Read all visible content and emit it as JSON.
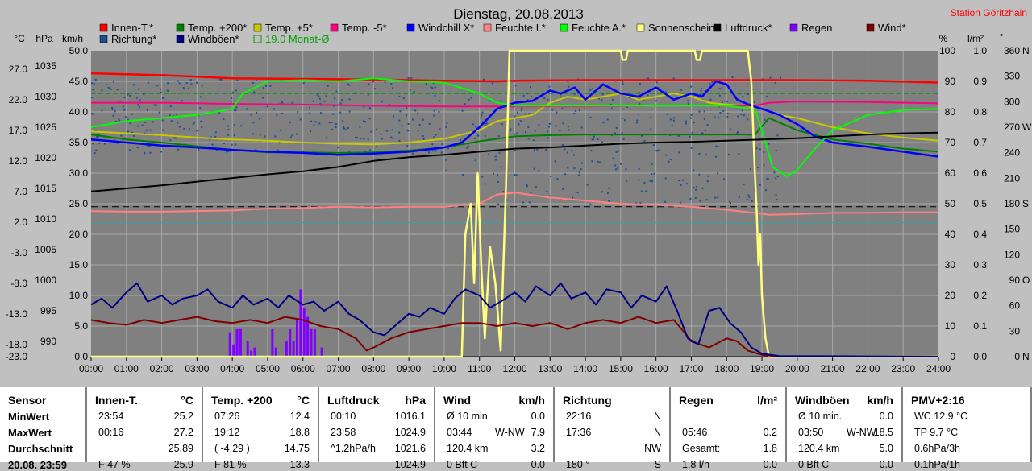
{
  "station": "Station Göritzhain",
  "chart_data": {
    "type": "line",
    "title": "Dienstag, 20.08.2013",
    "axis_units": {
      "c": "°C",
      "hpa": "hPa",
      "kmh": "km/h",
      "pct": "%",
      "rain": "l/m²",
      "deg": "°"
    },
    "x_ticks": [
      "00:00",
      "01:00",
      "02:00",
      "03:00",
      "04:00",
      "05:00",
      "06:00",
      "07:00",
      "08:00",
      "09:00",
      "10:00",
      "11:00",
      "12:00",
      "13:00",
      "14:00",
      "15:00",
      "16:00",
      "17:00",
      "18:00",
      "19:00",
      "20:00",
      "21:00",
      "22:00",
      "23:00",
      "24:00"
    ],
    "y_ticks_temp": [
      "27.0",
      "22.0",
      "17.0",
      "12.0",
      "7.0",
      "2.0",
      "-3.0",
      "-8.0",
      "-13.0",
      "-18.0",
      "-23.0"
    ],
    "y_ticks_hpa": [
      "1035",
      "1030",
      "1025",
      "1020",
      "1015",
      "1010",
      "1005",
      "1000",
      "995",
      "990"
    ],
    "y_ticks_kmh": [
      "50.0",
      "45.0",
      "40.0",
      "35.0",
      "30.0",
      "25.0",
      "20.0",
      "15.0",
      "10.0",
      "5.0",
      "0.0"
    ],
    "y_ticks_pct": [
      "100",
      "90",
      "80",
      "70",
      "60",
      "50",
      "40",
      "30",
      "20",
      "10",
      "0"
    ],
    "y_ticks_rain": [
      "1.0",
      "0.9",
      "0.8",
      "0.7",
      "0.6",
      "0.5",
      "0.4",
      "0.3",
      "0.2",
      "0.1",
      "0.0"
    ],
    "y_ticks_deg": [
      "360",
      "330",
      "300",
      "270",
      "240",
      "210",
      "180",
      "150",
      "120",
      "90",
      "60",
      "30",
      "0"
    ],
    "dir_labels": [
      {
        "deg": 360,
        "t": "N"
      },
      {
        "deg": 270,
        "t": "W"
      },
      {
        "deg": 180,
        "t": "S"
      },
      {
        "deg": 90,
        "t": "O"
      },
      {
        "deg": 0,
        "t": "N"
      }
    ],
    "ylim_kmh": [
      0,
      50
    ],
    "legend": [
      {
        "name": "Innen-T.*",
        "color": "#ff0000"
      },
      {
        "name": "Temp. +200*",
        "color": "#008000"
      },
      {
        "name": "Temp. +5*",
        "color": "#c8c800"
      },
      {
        "name": "Temp. -5*",
        "color": "#ff0080"
      },
      {
        "name": "Windchill X*",
        "color": "#0000ff"
      },
      {
        "name": "Feuchte I.*",
        "color": "#ff8080"
      },
      {
        "name": "Feuchte A.*",
        "color": "#00ff00"
      },
      {
        "name": "Sonnenschein",
        "color": "#ffff80"
      },
      {
        "name": "Luftdruck*",
        "color": "#000000"
      },
      {
        "name": "Regen",
        "color": "#8000ff"
      },
      {
        "name": "Wind*",
        "color": "#800000"
      },
      {
        "name": "Richtung*",
        "color": "#1f4f8f"
      },
      {
        "name": "Windböen*",
        "color": "#000080"
      },
      {
        "name": "19.0 Monat-Ø",
        "color": "#00a000",
        "outline": true
      }
    ],
    "series": [
      {
        "name": "Innen-T.*",
        "color": "#ff0000",
        "unit": "kmh",
        "x": [
          0,
          2,
          4,
          6,
          8,
          10,
          11.5,
          12,
          14,
          16,
          18,
          20,
          22,
          24
        ],
        "y": [
          46.3,
          46.0,
          45.5,
          45.4,
          45.3,
          45.1,
          45.0,
          45.1,
          45.2,
          45.2,
          45.2,
          45.2,
          45.1,
          44.8
        ]
      },
      {
        "name": "Temp. +200*",
        "color": "#008000",
        "unit": "kmh",
        "x": [
          0,
          1,
          2,
          3,
          4,
          5,
          6,
          7,
          8,
          9,
          10,
          11,
          12,
          13,
          14,
          15,
          16,
          17,
          18,
          18.8,
          19.2,
          20,
          21,
          22,
          23,
          24
        ],
        "y": [
          36.3,
          35.5,
          35.0,
          34.4,
          33.8,
          33.4,
          33.4,
          33.3,
          33.4,
          33.7,
          34.2,
          35.2,
          36.0,
          36.2,
          36.3,
          36.3,
          36.3,
          36.3,
          36.3,
          36.3,
          39.0,
          37.0,
          35.5,
          34.8,
          34.0,
          33.5
        ]
      },
      {
        "name": "Temp. +5*",
        "color": "#c8c800",
        "unit": "kmh",
        "x": [
          0,
          1,
          2,
          3,
          4,
          5,
          6,
          7,
          8,
          9,
          10,
          11,
          11.5,
          12,
          12.5,
          13,
          13.5,
          14,
          14.5,
          15,
          15.5,
          16,
          16.5,
          17,
          17.5,
          18,
          18.5,
          19,
          19.5,
          20,
          21,
          22,
          23,
          24
        ],
        "y": [
          36.8,
          36.5,
          36.2,
          35.8,
          35.5,
          35.3,
          35.0,
          34.8,
          34.7,
          35.0,
          35.6,
          37.0,
          38.5,
          39.0,
          39.5,
          41.5,
          42.5,
          42.0,
          42.5,
          43.0,
          42.0,
          42.5,
          43.0,
          42.5,
          41.5,
          41.2,
          41.0,
          40.5,
          39.5,
          39.0,
          37.5,
          36.5,
          35.8,
          35.3
        ]
      },
      {
        "name": "Temp. -5*",
        "color": "#ff0080",
        "unit": "kmh",
        "x": [
          0,
          2,
          4,
          6,
          8,
          10,
          12,
          14,
          16,
          18,
          18.8,
          19.2,
          20,
          22,
          24
        ],
        "y": [
          41.5,
          41.5,
          41.3,
          41.2,
          41.0,
          40.9,
          40.9,
          40.9,
          41.0,
          41.0,
          41.0,
          41.5,
          41.7,
          41.6,
          41.4
        ]
      },
      {
        "name": "Windchill X*",
        "color": "#0000ff",
        "unit": "kmh",
        "x": [
          0,
          1,
          2,
          3,
          4,
          5,
          6,
          7,
          8,
          9,
          10,
          10.5,
          11,
          11.5,
          12,
          12.5,
          13,
          13.3,
          13.7,
          14,
          14.5,
          15,
          15.5,
          16,
          16.5,
          17,
          17.3,
          17.7,
          18,
          18.3,
          18.7,
          19,
          19.5,
          20,
          20.5,
          21,
          22,
          23,
          24
        ],
        "y": [
          35.5,
          35.0,
          34.5,
          34.2,
          33.8,
          33.5,
          33.3,
          33.0,
          33.2,
          33.5,
          34.2,
          35.0,
          37.5,
          40.5,
          41.5,
          41.8,
          43.5,
          43.0,
          44.0,
          42.0,
          44.5,
          43.0,
          42.5,
          44.0,
          42.0,
          43.0,
          42.5,
          45.0,
          44.5,
          42.0,
          41.0,
          40.5,
          39.5,
          38.0,
          36.0,
          35.0,
          34.3,
          33.5,
          32.7
        ]
      },
      {
        "name": "Feuchte I.*",
        "color": "#ff8080",
        "unit": "kmh",
        "x": [
          0,
          1,
          2,
          3,
          4,
          5,
          6,
          7,
          8,
          9,
          10,
          11,
          11.5,
          12,
          13,
          14,
          15,
          16,
          17,
          18,
          18.8,
          19.2,
          20,
          21,
          22,
          23,
          24
        ],
        "y": [
          23.8,
          23.7,
          23.7,
          23.8,
          23.9,
          24.2,
          24.3,
          24.5,
          24.4,
          24.5,
          24.5,
          25.0,
          26.5,
          26.8,
          26.0,
          25.5,
          25.0,
          24.8,
          24.5,
          24.0,
          23.5,
          23.2,
          23.3,
          23.5,
          23.5,
          23.6,
          23.6
        ]
      },
      {
        "name": "Feuchte A.*",
        "color": "#00ff00",
        "unit": "kmh",
        "x": [
          0,
          1,
          2,
          3,
          4,
          4.3,
          5,
          6,
          7,
          8,
          9,
          10,
          11,
          11.5,
          12,
          13,
          14,
          15,
          16,
          17,
          18,
          18.8,
          19,
          19.3,
          19.7,
          20,
          20.5,
          21,
          22,
          23,
          24
        ],
        "y": [
          37.5,
          38.5,
          39.0,
          39.5,
          40.5,
          43.0,
          45.0,
          45.2,
          45.0,
          45.5,
          45.0,
          44.8,
          43.0,
          41.5,
          41.0,
          41.0,
          41.0,
          41.0,
          41.0,
          41.0,
          41.0,
          40.5,
          37.0,
          31.0,
          29.5,
          30.5,
          34.0,
          37.0,
          39.5,
          40.3,
          40.5
        ]
      },
      {
        "name": "Sonnenschein",
        "color": "#ffff80",
        "unit": "kmh",
        "x": [
          0,
          10.5,
          10.6,
          10.75,
          10.85,
          10.95,
          11.05,
          11.15,
          11.3,
          11.45,
          11.6,
          11.75,
          11.85,
          15.0,
          15.05,
          15.15,
          15.2,
          17.1,
          17.15,
          17.25,
          17.3,
          18.6,
          18.7,
          18.8,
          18.85,
          18.9,
          18.95,
          19.0,
          19.1,
          19.2,
          24
        ],
        "y": [
          0,
          0,
          20.0,
          25.0,
          12.0,
          30.0,
          15.0,
          3.0,
          18.0,
          12.0,
          1.0,
          28.0,
          50.0,
          50.0,
          48.5,
          48.5,
          50.0,
          50.0,
          48.5,
          48.5,
          50.0,
          50.0,
          45.0,
          30.0,
          24.0,
          15.0,
          20.0,
          10.0,
          3.0,
          0,
          0
        ]
      },
      {
        "name": "Luftdruck*",
        "color": "#000000",
        "unit": "kmh",
        "x": [
          0,
          1,
          2,
          3,
          4,
          5,
          6,
          7,
          8,
          9,
          10,
          11,
          12,
          13,
          14,
          15,
          16,
          17,
          18,
          19,
          20,
          21,
          22,
          23,
          24
        ],
        "y": [
          27.0,
          27.5,
          28.0,
          28.6,
          29.2,
          29.8,
          30.3,
          31.0,
          32.0,
          32.6,
          33.0,
          33.5,
          34.0,
          34.2,
          34.5,
          34.8,
          35.0,
          35.1,
          35.3,
          35.5,
          35.7,
          36.0,
          36.3,
          36.5,
          36.6
        ]
      },
      {
        "name": "Wind*",
        "color": "#800000",
        "unit": "kmh",
        "x": [
          0,
          0.5,
          1,
          1.5,
          2,
          2.5,
          3,
          3.5,
          4,
          4.5,
          5,
          5.5,
          6,
          6.5,
          7,
          7.5,
          7.8,
          8,
          8.5,
          9,
          9.5,
          10,
          10.5,
          11,
          11.5,
          12,
          12.5,
          13,
          13.5,
          14,
          14.5,
          15,
          15.5,
          16,
          16.5,
          16.8,
          17,
          17.5,
          18,
          18.3,
          18.6,
          19,
          19.5,
          24
        ],
        "y": [
          6.0,
          5.5,
          5.2,
          6.0,
          5.5,
          6.0,
          6.5,
          5.8,
          5.5,
          6.0,
          5.5,
          6.5,
          6.0,
          5.0,
          4.5,
          3.0,
          1.0,
          1.5,
          3.0,
          4.0,
          4.5,
          5.0,
          5.5,
          5.5,
          5.0,
          5.5,
          5.0,
          5.5,
          4.5,
          5.5,
          6.0,
          5.5,
          6.5,
          5.5,
          6.0,
          4.0,
          2.5,
          1.5,
          3.0,
          2.5,
          1.0,
          0.3,
          0,
          0
        ]
      },
      {
        "name": "Windböen*",
        "color": "#000080",
        "unit": "kmh",
        "x": [
          0,
          0.3,
          0.6,
          1,
          1.3,
          1.6,
          2,
          2.3,
          2.6,
          3,
          3.3,
          3.6,
          4,
          4.3,
          4.6,
          5,
          5.3,
          5.6,
          6,
          6.3,
          6.6,
          7,
          7.3,
          7.6,
          8,
          8.3,
          8.6,
          9,
          9.3,
          9.6,
          10,
          10.3,
          10.6,
          11,
          11.3,
          11.6,
          12,
          12.3,
          12.6,
          13,
          13.3,
          13.6,
          14,
          14.3,
          14.6,
          15,
          15.3,
          15.6,
          16,
          16.3,
          16.6,
          16.9,
          17.2,
          17.5,
          17.8,
          18.1,
          18.4,
          18.7,
          19,
          19.5,
          24
        ],
        "y": [
          8.5,
          9.5,
          8.0,
          10.5,
          12.0,
          9.0,
          10.0,
          8.5,
          9.5,
          10.0,
          11.0,
          9.0,
          8.0,
          10.0,
          8.5,
          9.5,
          8.0,
          10.0,
          8.5,
          9.0,
          7.5,
          9.0,
          7.0,
          6.0,
          4.0,
          3.5,
          5.0,
          7.0,
          6.5,
          8.0,
          7.0,
          9.5,
          11.0,
          10.0,
          8.0,
          9.0,
          10.5,
          9.0,
          11.5,
          10.0,
          12.0,
          9.5,
          10.5,
          8.5,
          11.0,
          10.5,
          8.0,
          10.0,
          9.0,
          11.5,
          7.5,
          3.0,
          2.0,
          7.5,
          8.0,
          5.5,
          4.0,
          1.5,
          0.5,
          0.1,
          0
        ]
      }
    ],
    "richtung_scatter": "Richtung* (Punkte)",
    "rain_bars": {
      "name": "Regen",
      "unit": "rain",
      "x": [
        3.9,
        4.0,
        4.1,
        4.2,
        4.4,
        4.5,
        4.6,
        5.1,
        5.2,
        5.5,
        5.6,
        5.7,
        5.8,
        5.9,
        6.0,
        6.1,
        6.2,
        6.3,
        6.5
      ],
      "y": [
        0.08,
        0.04,
        0.09,
        0.09,
        0.05,
        0.02,
        0.03,
        0.09,
        0.03,
        0.05,
        0.09,
        0.05,
        0.12,
        0.22,
        0.16,
        0.13,
        0.09,
        0.09,
        0.03
      ]
    }
  },
  "panels": [
    {
      "name": "sensor",
      "header": "Sensor",
      "unit": "",
      "rows": [
        [
          "MinWert",
          "",
          ""
        ],
        [
          "MaxWert",
          "",
          ""
        ],
        [
          "Durchschnitt",
          "",
          ""
        ],
        [
          "20.08. 23:59",
          "",
          ""
        ]
      ]
    },
    {
      "name": "innen-t",
      "header": "Innen-T.",
      "unit": "°C",
      "rows": [
        [
          "23:54",
          "",
          "25.2"
        ],
        [
          "00:16",
          "",
          "27.2"
        ],
        [
          "",
          "",
          "25.89"
        ],
        [
          "F 47 %",
          "",
          "25.9"
        ]
      ]
    },
    {
      "name": "temp200",
      "header": "Temp. +200",
      "unit": "°C",
      "rows": [
        [
          "07:26",
          "",
          "12.4"
        ],
        [
          "19:12",
          "",
          "18.8"
        ],
        [
          "( -4.29 )",
          "",
          "14.75"
        ],
        [
          "F 81 %",
          "",
          "13.3"
        ]
      ]
    },
    {
      "name": "luftdruck",
      "header": "Luftdruck",
      "unit": "hPa",
      "rows": [
        [
          "00:10",
          "",
          "1016.1"
        ],
        [
          "23:58",
          "",
          "1024.9"
        ],
        [
          "^1.2hPa/h",
          "",
          "1021.6"
        ],
        [
          "",
          "",
          "1024.9"
        ]
      ]
    },
    {
      "name": "wind",
      "header": "Wind",
      "unit": "km/h",
      "rows": [
        [
          "Ø 10 min.",
          "",
          "0.0"
        ],
        [
          "03:44",
          "W-NW",
          "7.9"
        ],
        [
          "120.4 km",
          "",
          "3.2"
        ],
        [
          "0 Bft C",
          "",
          "0.0"
        ]
      ]
    },
    {
      "name": "richtung",
      "header": "Richtung",
      "unit": "",
      "rows": [
        [
          "22:16",
          "",
          "N"
        ],
        [
          "17:36",
          "",
          "N"
        ],
        [
          "",
          "",
          "NW"
        ],
        [
          "180 °",
          "",
          "S"
        ]
      ]
    },
    {
      "name": "regen",
      "header": "Regen",
      "unit": "l/m²",
      "rows": [
        [
          "",
          "",
          ""
        ],
        [
          "05:46",
          "",
          "0.2"
        ],
        [
          "Gesamt:",
          "",
          "1.8"
        ],
        [
          "1.8 l/h",
          "",
          "0.0"
        ]
      ]
    },
    {
      "name": "windboeen",
      "header": "Windböen",
      "unit": "km/h",
      "rows": [
        [
          "Ø 10 min.",
          "",
          "0.0"
        ],
        [
          "03:50",
          "W-NW",
          "18.5"
        ],
        [
          "120.4 km",
          "",
          "5.0"
        ],
        [
          "0 Bft C",
          "",
          "0.0"
        ]
      ]
    },
    {
      "name": "pmv",
      "header": "PMV+2:16",
      "unit": "",
      "rows": [
        [
          "WC 12.9 °C",
          "",
          ""
        ],
        [
          "TP 9.7 °C",
          "",
          ""
        ],
        [
          "0.6hPa/3h",
          "",
          ""
        ],
        [
          "0.1hPa/1h",
          "",
          ""
        ]
      ]
    }
  ]
}
